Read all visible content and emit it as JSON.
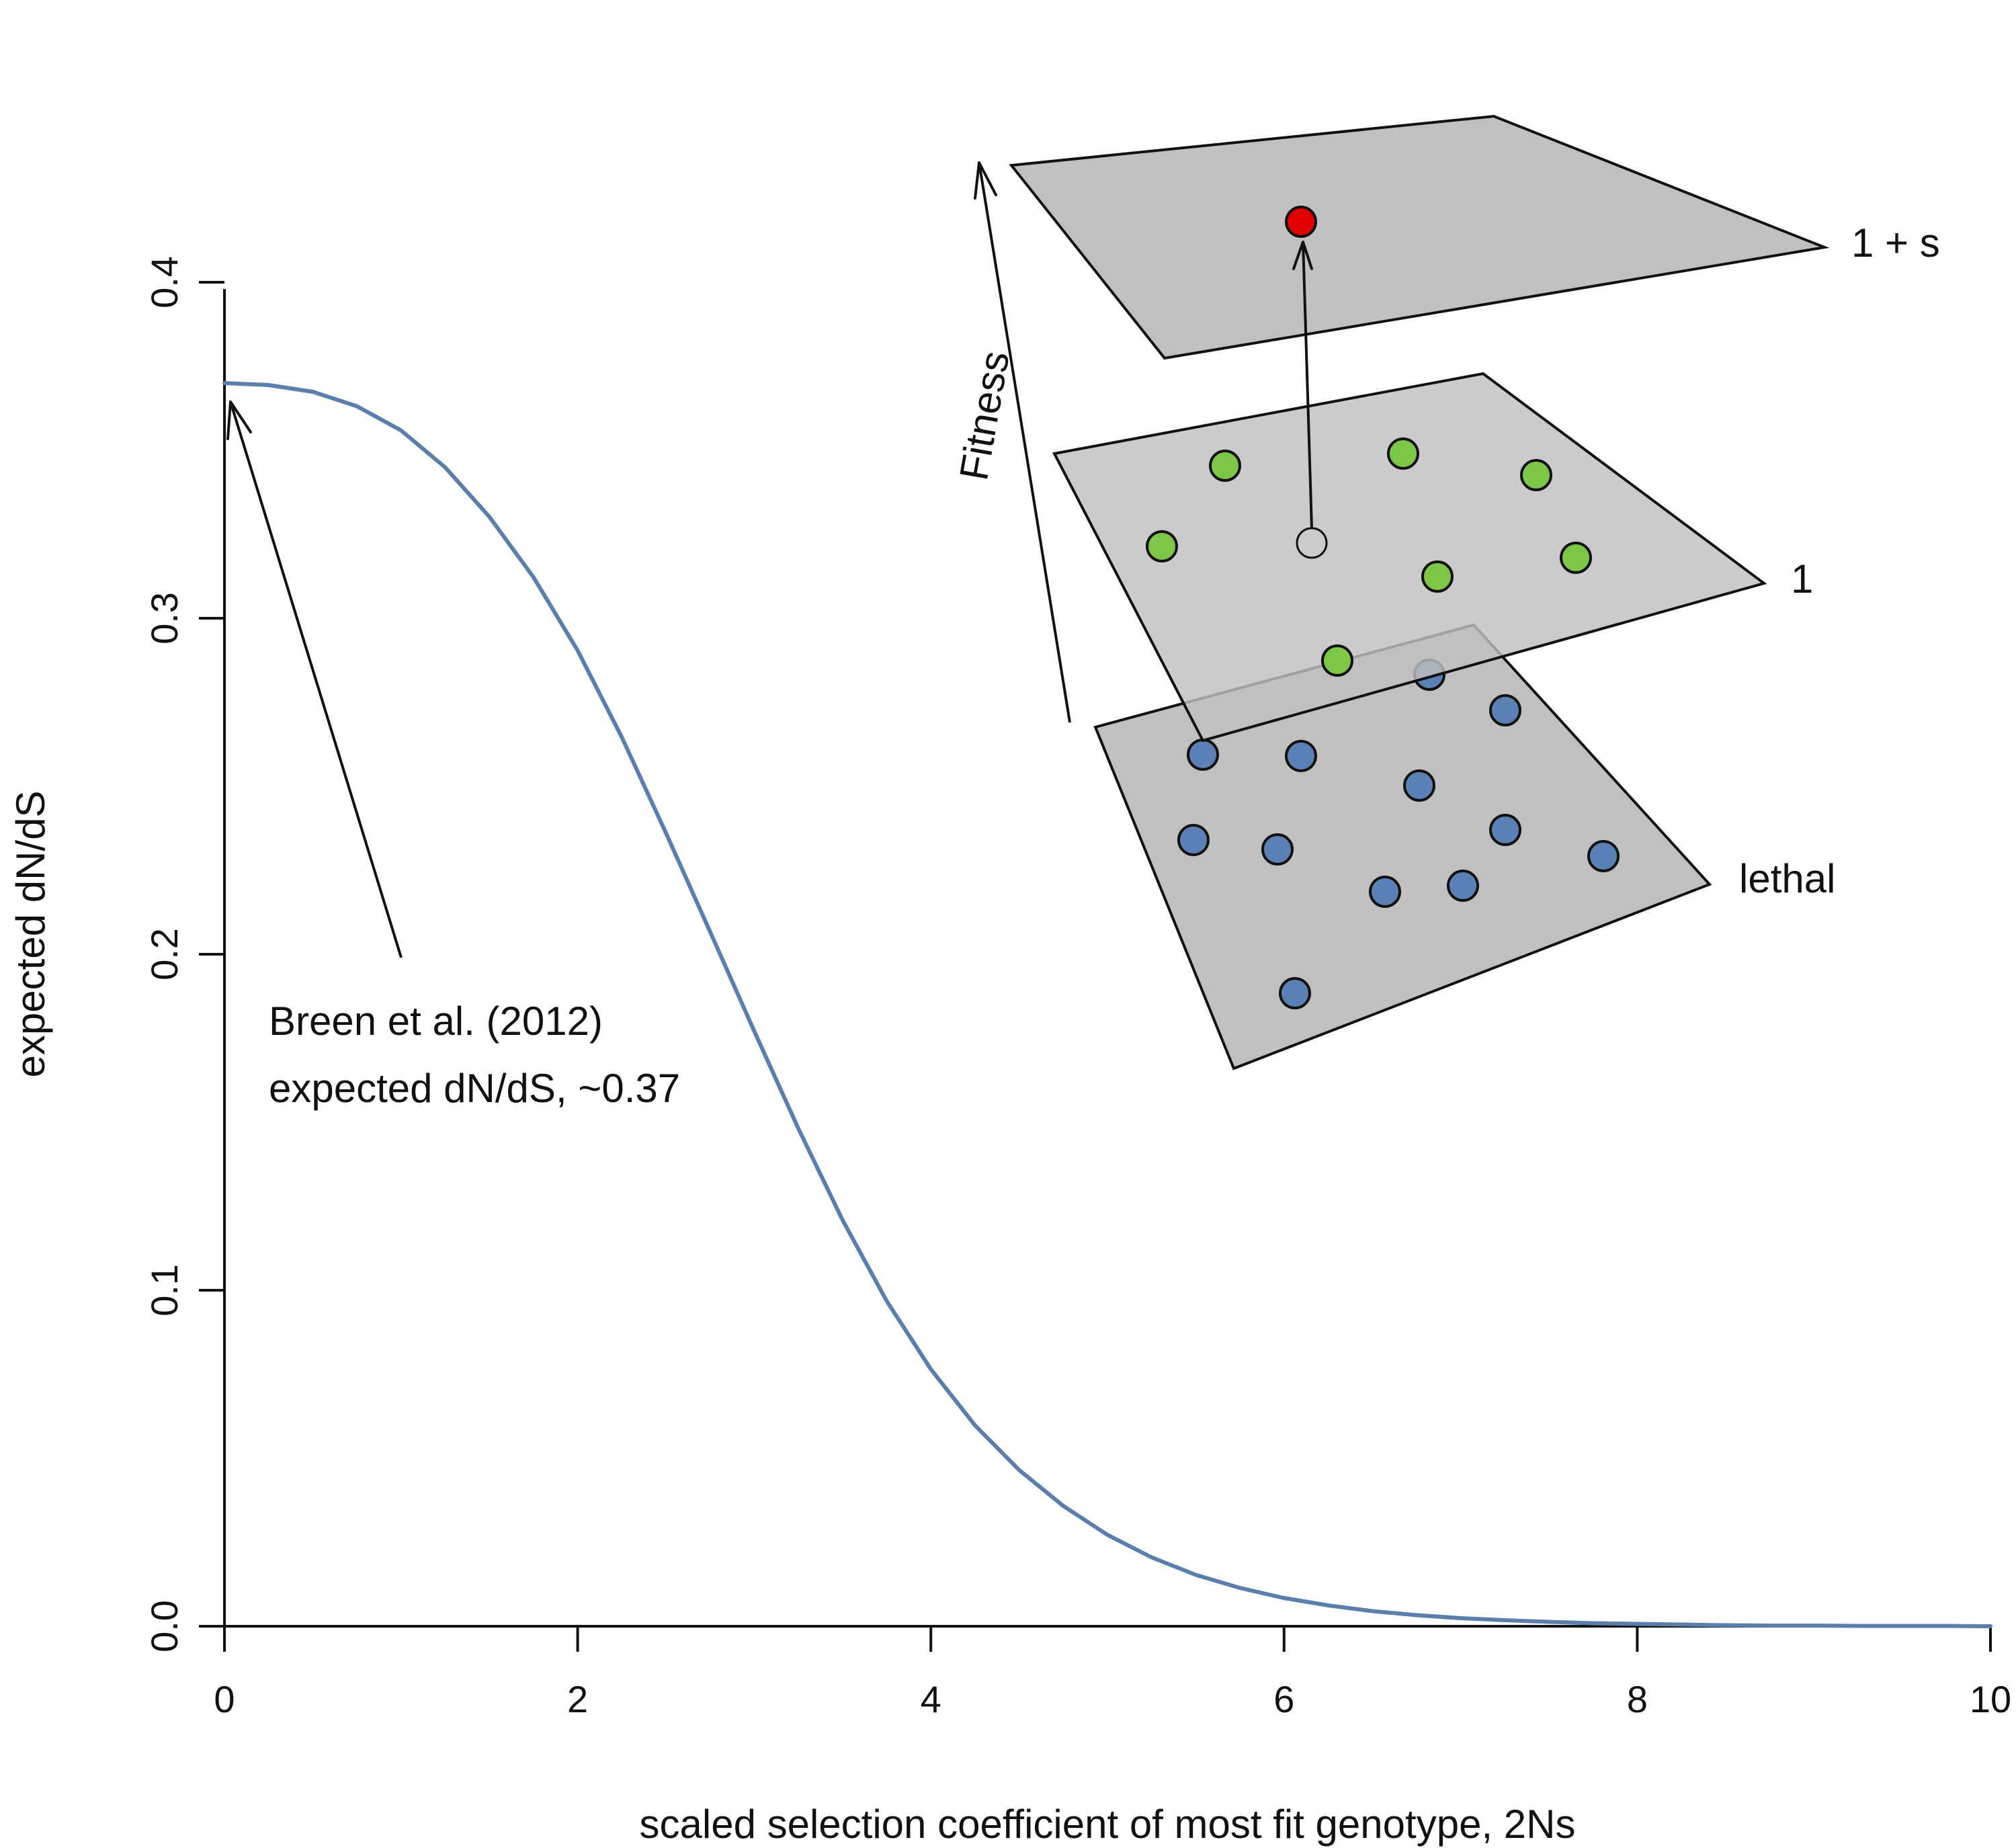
{
  "chart_data": {
    "type": "line",
    "title": "",
    "xlabel": "scaled selection coefficient of most fit genotype, 2Ns",
    "ylabel": "expected dN/dS",
    "xlim": [
      0,
      10
    ],
    "ylim": [
      0,
      0.4
    ],
    "xticks": [
      "0",
      "2",
      "4",
      "6",
      "8",
      "10"
    ],
    "yticks": [
      "0.0",
      "0.1",
      "0.2",
      "0.3",
      "0.4"
    ],
    "grid": false,
    "legend": "none",
    "series": [
      {
        "color": "#5b7fad",
        "x": [
          0,
          0.25,
          0.5,
          0.75,
          1,
          1.25,
          1.5,
          1.75,
          2,
          2.25,
          2.5,
          2.75,
          3,
          3.25,
          3.5,
          3.75,
          4,
          4.25,
          4.5,
          4.75,
          5,
          5.25,
          5.5,
          5.75,
          6,
          6.25,
          6.5,
          6.75,
          7,
          7.25,
          7.5,
          7.75,
          8,
          8.25,
          8.5,
          8.75,
          9,
          9.25,
          9.5,
          9.75,
          10
        ],
        "y": [
          0.37,
          0.3694,
          0.3674,
          0.3631,
          0.3559,
          0.3449,
          0.3302,
          0.3122,
          0.2904,
          0.2646,
          0.2361,
          0.2067,
          0.1771,
          0.1481,
          0.1209,
          0.0968,
          0.0765,
          0.0598,
          0.0465,
          0.0358,
          0.0272,
          0.0205,
          0.0153,
          0.0114,
          0.0084,
          0.0062,
          0.0045,
          0.0033,
          0.0024,
          0.0018,
          0.0013,
          0.0009,
          0.0007,
          0.0005,
          0.0003,
          0.0002,
          0.0002,
          0.0001,
          0.0001,
          0.0001,
          0.0
        ]
      }
    ],
    "annotations": [
      {
        "text_lines": [
          "Breen et al. (2012)",
          "expected dN/dS, ~0.37"
        ],
        "arrow_to": [
          0.05,
          0.366
        ]
      }
    ]
  },
  "inset": {
    "axis_label": "Fitness",
    "layers": [
      {
        "label": "lethal",
        "dot_color": "#5b80b5"
      },
      {
        "label": "1",
        "dot_color": "#7cc846"
      },
      {
        "label": "1 + s",
        "dot_color": "#e00000"
      }
    ],
    "plane_fill": "#c0c0c0"
  }
}
